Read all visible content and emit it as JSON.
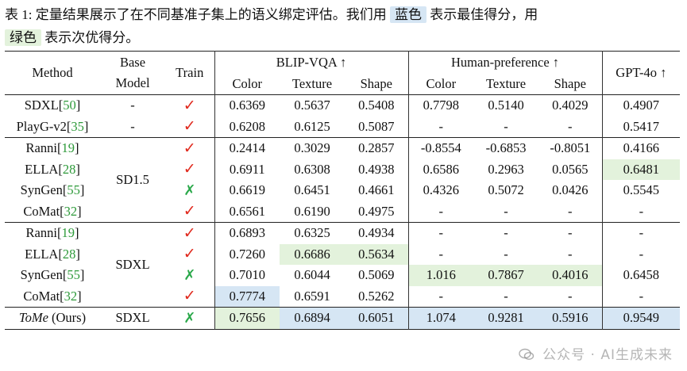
{
  "caption": {
    "prefix": "表 1: 定量结果展示了在不同基准子集上的语义绑定评估。我们用",
    "blue_word": "蓝色",
    "middle": "表示最佳得分，用",
    "green_word": "绿色",
    "suffix": "表示次优得分。"
  },
  "header": {
    "method": "Method",
    "base_model_line1": "Base",
    "base_model_line2": "Model",
    "train": "Train",
    "group_blip": "BLIP-VQA ↑",
    "group_human": "Human-preference ↑",
    "group_gpt": "GPT-4o ↑",
    "color": "Color",
    "texture": "Texture",
    "shape": "Shape"
  },
  "rows": [
    {
      "method": "SDXL",
      "cite": "50",
      "base": "-",
      "train": "✓",
      "cells": [
        "0.6369",
        "0.5637",
        "0.5408",
        "0.7798",
        "0.5140",
        "0.4029",
        "0.4907"
      ]
    },
    {
      "method": "PlayG-v2",
      "cite": "35",
      "base": "-",
      "train": "✓",
      "cells": [
        "0.6208",
        "0.6125",
        "0.5087",
        "-",
        "-",
        "-",
        "0.5417"
      ]
    },
    {
      "method": "Ranni",
      "cite": "19",
      "base": "SD1.5",
      "train": "✓",
      "cells": [
        "0.2414",
        "0.3029",
        "0.2857",
        "-0.8554",
        "-0.6853",
        "-0.8051",
        "0.4166"
      ]
    },
    {
      "method": "ELLA",
      "cite": "28",
      "train": "✓",
      "cells": [
        "0.6911",
        "0.6308",
        "0.4938",
        "0.6586",
        "0.2963",
        "0.0565",
        "0.6481"
      ]
    },
    {
      "method": "SynGen",
      "cite": "55",
      "train": "✗",
      "cells": [
        "0.6619",
        "0.6451",
        "0.4661",
        "0.4326",
        "0.5072",
        "0.0426",
        "0.5545"
      ]
    },
    {
      "method": "CoMat",
      "cite": "32",
      "train": "✓",
      "cells": [
        "0.6561",
        "0.6190",
        "0.4975",
        "-",
        "-",
        "-",
        "-"
      ]
    },
    {
      "method": "Ranni",
      "cite": "19",
      "base": "SDXL",
      "train": "✓",
      "cells": [
        "0.6893",
        "0.6325",
        "0.4934",
        "-",
        "-",
        "-",
        "-"
      ]
    },
    {
      "method": "ELLA",
      "cite": "28",
      "train": "✓",
      "cells": [
        "0.7260",
        "0.6686",
        "0.5634",
        "-",
        "-",
        "-",
        "-"
      ]
    },
    {
      "method": "SynGen",
      "cite": "55",
      "train": "✗",
      "cells": [
        "0.7010",
        "0.6044",
        "0.5069",
        "1.016",
        "0.7867",
        "0.4016",
        "0.6458"
      ]
    },
    {
      "method": "CoMat",
      "cite": "32",
      "train": "✓",
      "cells": [
        "0.7774",
        "0.6591",
        "0.5262",
        "-",
        "-",
        "-",
        "-"
      ]
    },
    {
      "method": "ToMe",
      "suffix": " (Ours)",
      "base": "SDXL",
      "train": "✗",
      "cells": [
        "0.7656",
        "0.6894",
        "0.6051",
        "1.074",
        "0.9281",
        "0.5916",
        "0.9549"
      ]
    }
  ],
  "highlight_colors": {
    "best": "#d6e6f4",
    "second": "#e3f2dc"
  },
  "watermark": "公众号 · AI生成未来"
}
